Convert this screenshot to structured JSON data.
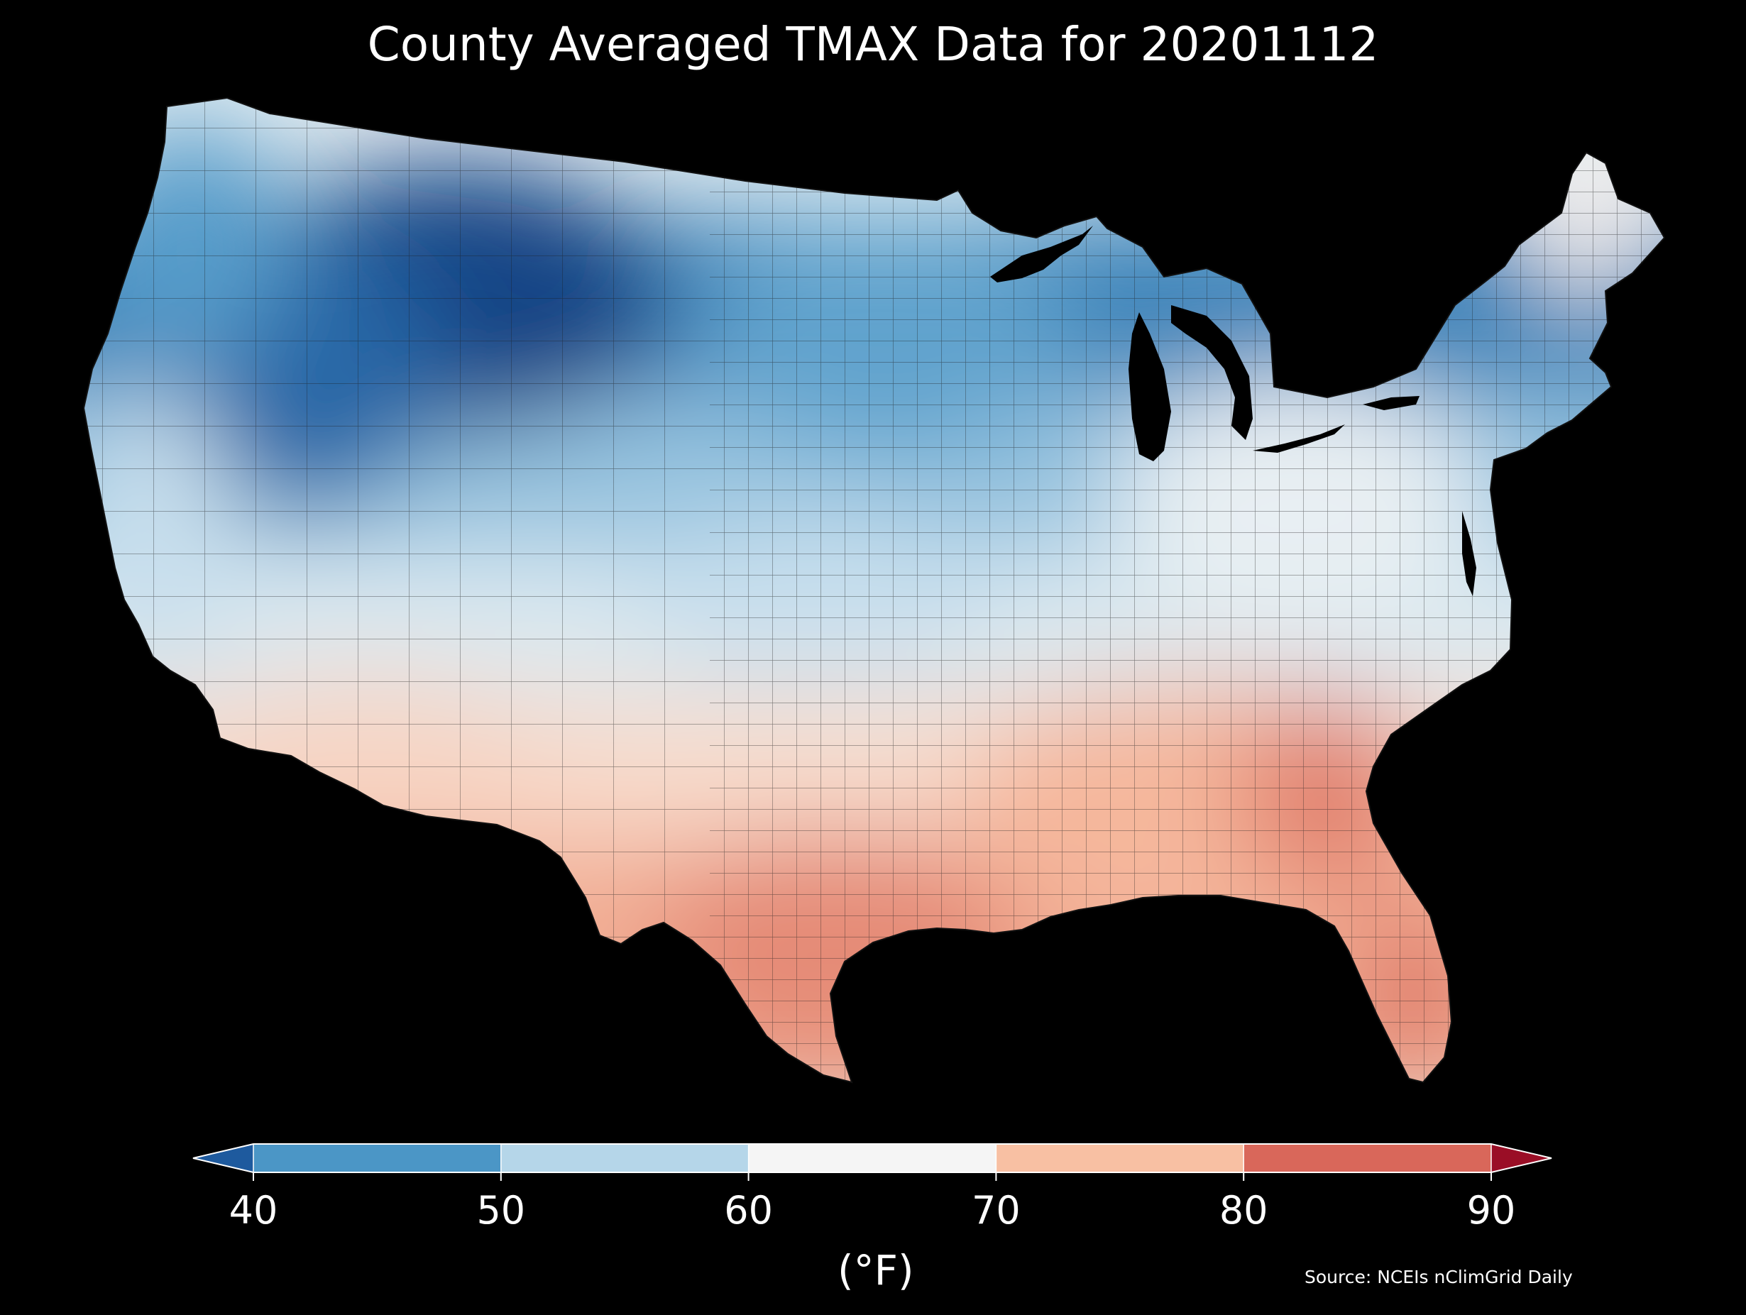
{
  "title": "County Averaged TMAX Data for 20201112",
  "source": "Source: NCEIs nClimGrid Daily",
  "colorbar": {
    "unit_label": "(°F)",
    "tick_labels": [
      "40",
      "50",
      "60",
      "70",
      "80",
      "90"
    ],
    "ticks": [
      40,
      50,
      60,
      70,
      80,
      90
    ],
    "extend": "both",
    "under_color": "#1e5a9e",
    "over_color": "#9a0e26",
    "bins": [
      {
        "from": 40,
        "to": 50,
        "color": "#4b96c6"
      },
      {
        "from": 50,
        "to": 60,
        "color": "#b5d6e9"
      },
      {
        "from": 60,
        "to": 70,
        "color": "#f5f5f5"
      },
      {
        "from": 70,
        "to": 80,
        "color": "#f8c0a3"
      },
      {
        "from": 80,
        "to": 90,
        "color": "#d9675a"
      }
    ]
  },
  "map": {
    "region": "Contiguous United States",
    "variable": "TMAX",
    "background": "#000000",
    "temperature_regions": [
      {
        "region": "Montana / North Dakota / South Dakota",
        "temperature_f": 30
      },
      {
        "region": "Wyoming / Idaho interior",
        "temperature_f": 37
      },
      {
        "region": "Minnesota focal minimum",
        "temperature_f": 33
      },
      {
        "region": "Washington / Oregon",
        "temperature_f": 46
      },
      {
        "region": "Upper Midwest",
        "temperature_f": 47
      },
      {
        "region": "California coast",
        "temperature_f": 58
      },
      {
        "region": "Kansas / Missouri",
        "temperature_f": 58
      },
      {
        "region": "Ohio Valley / Northeast",
        "temperature_f": 63
      },
      {
        "region": "Maine",
        "temperature_f": 66
      },
      {
        "region": "Southern California / Arizona",
        "temperature_f": 71
      },
      {
        "region": "Southeast",
        "temperature_f": 76
      },
      {
        "region": "Georgia",
        "temperature_f": 82
      },
      {
        "region": "Texas Gulf Coast",
        "temperature_f": 81
      },
      {
        "region": "South Florida",
        "temperature_f": 84
      }
    ]
  }
}
